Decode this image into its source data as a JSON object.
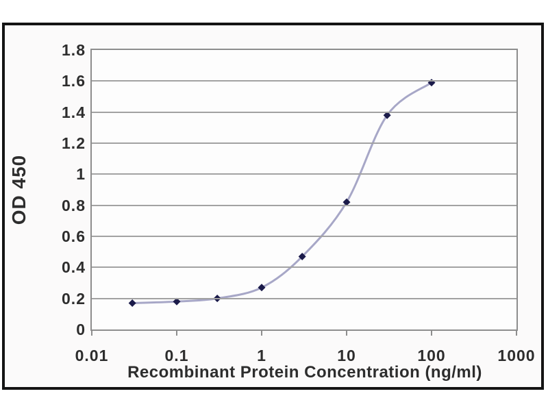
{
  "page": {
    "background": "#ffffff"
  },
  "frame": {
    "border_color": "#141414",
    "background": "#fbfafa"
  },
  "chart_data": {
    "type": "line",
    "title": "",
    "xlabel": "Recombinant Protein Concentration (ng/ml)",
    "ylabel": "OD 450",
    "x_scale": "log",
    "xlim": [
      0.01,
      1000
    ],
    "ylim": [
      0,
      1.8
    ],
    "x_ticks": [
      0.01,
      0.1,
      1,
      10,
      100,
      1000
    ],
    "x_tick_labels": [
      "0.01",
      "0.1",
      "1",
      "10",
      "100",
      "1000"
    ],
    "y_ticks": [
      0,
      0.2,
      0.4,
      0.6,
      0.8,
      1,
      1.2,
      1.4,
      1.6,
      1.8
    ],
    "y_tick_labels": [
      "0",
      "0.2",
      "0.4",
      "0.6",
      "0.8",
      "1",
      "1.2",
      "1.4",
      "1.6",
      "1.8"
    ],
    "grid": "horizontal",
    "legend": null,
    "series": [
      {
        "name": "OD 450",
        "x": [
          0.03,
          0.1,
          0.3,
          1,
          3,
          10,
          30,
          100
        ],
        "y": [
          0.17,
          0.18,
          0.2,
          0.27,
          0.47,
          0.82,
          1.38,
          1.59
        ],
        "line_color": "#a7a7c7",
        "marker": "diamond",
        "marker_color": "#1b1b4a"
      }
    ],
    "colors": {
      "gridline": "#a2a2a2",
      "plot_border": "#8d8d8d",
      "plot_background": "#fdfdfd",
      "text": "#2d2d2d"
    }
  }
}
